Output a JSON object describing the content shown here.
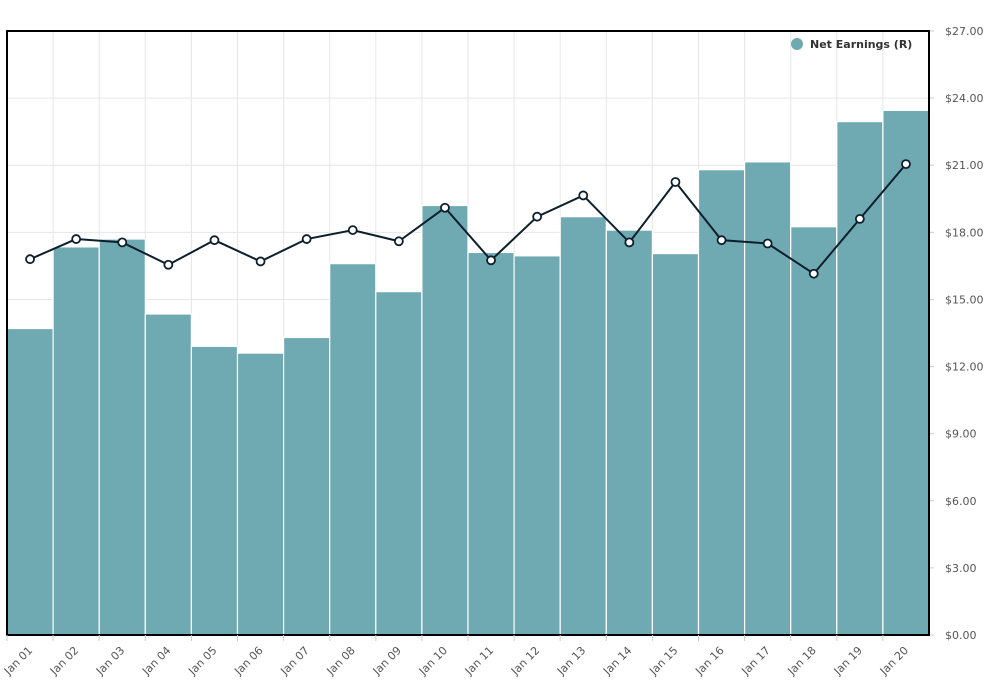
{
  "chart_data": {
    "type": "bar",
    "title": "",
    "xlabel": "",
    "ylabel": "",
    "categories": [
      "Jan 01",
      "Jan 02",
      "Jan 03",
      "Jan 04",
      "Jan 05",
      "Jan 06",
      "Jan 07",
      "Jan 08",
      "Jan 09",
      "Jan 10",
      "Jan 11",
      "Jan 12",
      "Jan 13",
      "Jan 14",
      "Jan 15",
      "Jan 16",
      "Jan 17",
      "Jan 18",
      "Jan 19",
      "Jan 20"
    ],
    "series": [
      {
        "name": "Net Earnings (R)",
        "type": "bar",
        "color": "#6fa9b2",
        "values": [
          13.7,
          17.35,
          17.7,
          14.35,
          12.9,
          12.6,
          13.3,
          16.6,
          15.35,
          19.2,
          17.1,
          16.95,
          18.7,
          18.1,
          17.05,
          20.8,
          21.15,
          18.25,
          22.95,
          23.45
        ]
      },
      {
        "name": "Line",
        "type": "line",
        "color": "#0d1f2d",
        "values": [
          16.8,
          17.7,
          17.55,
          16.55,
          17.65,
          16.7,
          17.7,
          18.1,
          17.6,
          19.1,
          16.75,
          18.7,
          19.65,
          17.55,
          20.25,
          17.65,
          17.5,
          16.15,
          18.6,
          21.05
        ]
      }
    ],
    "y_ticks": [
      "$0.00",
      "$3.00",
      "$6.00",
      "$9.00",
      "$12.00",
      "$15.00",
      "$18.00",
      "$21.00",
      "$24.00",
      "$27.00"
    ],
    "ylim": [
      0,
      27
    ],
    "grid": true,
    "legend": {
      "position": "top-right",
      "label": "Net Earnings (R)",
      "color": "#6fa9b2"
    }
  }
}
